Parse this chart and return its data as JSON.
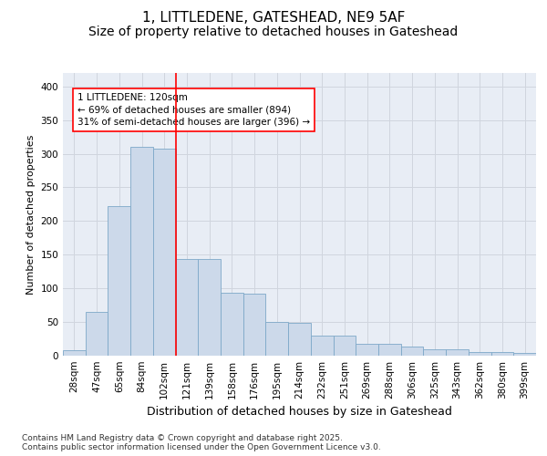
{
  "title_line1": "1, LITTLEDENE, GATESHEAD, NE9 5AF",
  "title_line2": "Size of property relative to detached houses in Gateshead",
  "xlabel": "Distribution of detached houses by size in Gateshead",
  "ylabel": "Number of detached properties",
  "bar_labels": [
    "28sqm",
    "47sqm",
    "65sqm",
    "84sqm",
    "102sqm",
    "121sqm",
    "139sqm",
    "158sqm",
    "176sqm",
    "195sqm",
    "214sqm",
    "232sqm",
    "251sqm",
    "269sqm",
    "288sqm",
    "306sqm",
    "325sqm",
    "343sqm",
    "362sqm",
    "380sqm",
    "399sqm"
  ],
  "bar_values": [
    8,
    65,
    222,
    310,
    308,
    143,
    143,
    93,
    92,
    50,
    49,
    30,
    30,
    18,
    18,
    13,
    10,
    10,
    5,
    5,
    4
  ],
  "bar_color": "#ccd9ea",
  "bar_edge_color": "#7da8c8",
  "grid_color": "#d0d5de",
  "background_color": "#e8edf5",
  "annotation_text": "1 LITTLEDENE: 120sqm\n← 69% of detached houses are smaller (894)\n31% of semi-detached houses are larger (396) →",
  "annotation_box_facecolor": "white",
  "annotation_box_edgecolor": "red",
  "red_line_index": 4.5,
  "ylim": [
    0,
    420
  ],
  "yticks": [
    0,
    50,
    100,
    150,
    200,
    250,
    300,
    350,
    400
  ],
  "footer_text": "Contains HM Land Registry data © Crown copyright and database right 2025.\nContains public sector information licensed under the Open Government Licence v3.0.",
  "title_fontsize": 11,
  "subtitle_fontsize": 10,
  "ylabel_fontsize": 8,
  "xlabel_fontsize": 9,
  "tick_fontsize": 7.5,
  "annotation_fontsize": 7.5,
  "footer_fontsize": 6.5
}
